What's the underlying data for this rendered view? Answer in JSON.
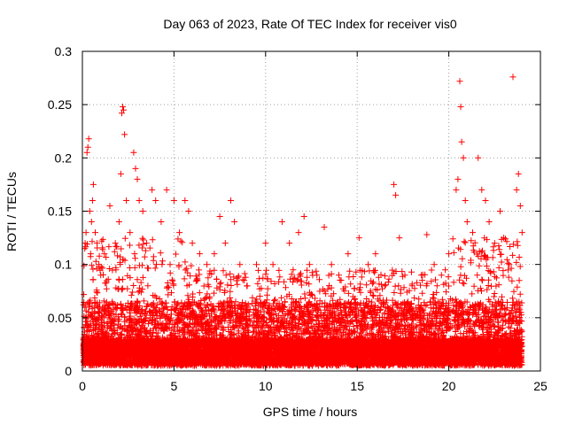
{
  "chart_data": {
    "type": "scatter",
    "title": "Day 063 of 2023, Rate Of TEC Index for receiver vis0",
    "xlabel": "GPS time / hours",
    "ylabel": "ROTI / TECUs",
    "xlim": [
      0,
      25
    ],
    "ylim": [
      0,
      0.3
    ],
    "xticks": [
      0,
      5,
      10,
      15,
      20,
      25
    ],
    "xtick_labels": [
      "0",
      "5",
      "10",
      "15",
      "20",
      "25"
    ],
    "yticks": [
      0,
      0.05,
      0.1,
      0.15,
      0.2,
      0.25,
      0.3
    ],
    "ytick_labels": [
      "0",
      "0.05",
      "0.1",
      "0.15",
      "0.2",
      "0.25",
      "0.3"
    ],
    "grid": true,
    "marker": "+",
    "color": "#ff0000",
    "series": [
      {
        "name": "ROTI",
        "points": [
          [
            0.15,
            0.12
          ],
          [
            0.2,
            0.13
          ],
          [
            0.25,
            0.205
          ],
          [
            0.3,
            0.21
          ],
          [
            0.35,
            0.218
          ],
          [
            0.4,
            0.15
          ],
          [
            0.45,
            0.11
          ],
          [
            0.5,
            0.14
          ],
          [
            0.55,
            0.16
          ],
          [
            0.6,
            0.175
          ],
          [
            0.7,
            0.13
          ],
          [
            0.8,
            0.12
          ],
          [
            0.9,
            0.1
          ],
          [
            1.0,
            0.09
          ],
          [
            1.2,
            0.11
          ],
          [
            1.5,
            0.155
          ],
          [
            1.8,
            0.12
          ],
          [
            2.0,
            0.14
          ],
          [
            2.1,
            0.185
          ],
          [
            2.15,
            0.242
          ],
          [
            2.2,
            0.248
          ],
          [
            2.25,
            0.245
          ],
          [
            2.3,
            0.222
          ],
          [
            2.4,
            0.16
          ],
          [
            2.6,
            0.13
          ],
          [
            2.8,
            0.205
          ],
          [
            2.9,
            0.19
          ],
          [
            3.0,
            0.18
          ],
          [
            3.1,
            0.16
          ],
          [
            3.3,
            0.15
          ],
          [
            3.5,
            0.12
          ],
          [
            3.8,
            0.17
          ],
          [
            4.0,
            0.16
          ],
          [
            4.3,
            0.14
          ],
          [
            4.6,
            0.17
          ],
          [
            5.0,
            0.16
          ],
          [
            5.3,
            0.13
          ],
          [
            5.6,
            0.16
          ],
          [
            5.8,
            0.15
          ],
          [
            6.0,
            0.12
          ],
          [
            6.4,
            0.11
          ],
          [
            6.8,
            0.1
          ],
          [
            7.2,
            0.11
          ],
          [
            7.5,
            0.145
          ],
          [
            7.8,
            0.12
          ],
          [
            8.1,
            0.16
          ],
          [
            8.3,
            0.14
          ],
          [
            8.6,
            0.1
          ],
          [
            9.0,
            0.08
          ],
          [
            9.5,
            0.1
          ],
          [
            10.0,
            0.12
          ],
          [
            10.4,
            0.1
          ],
          [
            10.9,
            0.14
          ],
          [
            11.3,
            0.12
          ],
          [
            11.8,
            0.13
          ],
          [
            12.1,
            0.145
          ],
          [
            12.4,
            0.1
          ],
          [
            12.8,
            0.09
          ],
          [
            13.2,
            0.135
          ],
          [
            13.6,
            0.1
          ],
          [
            14.0,
            0.09
          ],
          [
            14.5,
            0.11
          ],
          [
            15.1,
            0.125
          ],
          [
            15.6,
            0.1
          ],
          [
            16.0,
            0.11
          ],
          [
            16.5,
            0.08
          ],
          [
            17.0,
            0.175
          ],
          [
            17.1,
            0.165
          ],
          [
            17.3,
            0.125
          ],
          [
            17.6,
            0.09
          ],
          [
            18.0,
            0.08
          ],
          [
            18.5,
            0.09
          ],
          [
            18.8,
            0.128
          ],
          [
            19.2,
            0.1
          ],
          [
            19.6,
            0.09
          ],
          [
            20.0,
            0.11
          ],
          [
            20.4,
            0.17
          ],
          [
            20.5,
            0.18
          ],
          [
            20.6,
            0.272
          ],
          [
            20.65,
            0.248
          ],
          [
            20.7,
            0.215
          ],
          [
            20.8,
            0.2
          ],
          [
            20.9,
            0.16
          ],
          [
            21.0,
            0.14
          ],
          [
            21.3,
            0.13
          ],
          [
            21.6,
            0.2
          ],
          [
            21.8,
            0.17
          ],
          [
            22.0,
            0.16
          ],
          [
            22.2,
            0.14
          ],
          [
            22.5,
            0.12
          ],
          [
            22.8,
            0.15
          ],
          [
            23.0,
            0.125
          ],
          [
            23.3,
            0.1
          ],
          [
            23.5,
            0.276
          ],
          [
            23.7,
            0.17
          ],
          [
            23.8,
            0.185
          ],
          [
            23.9,
            0.155
          ],
          [
            24.0,
            0.13
          ]
        ]
      }
    ],
    "noise_generation": {
      "samples": 12000,
      "x_range": [
        0.05,
        24.0
      ],
      "y_floor": 0.005,
      "typical_max": 0.06,
      "active_band_max": 0.12,
      "active_intervals": [
        [
          0.0,
          6.0
        ],
        [
          20.2,
          24.0
        ]
      ]
    }
  }
}
